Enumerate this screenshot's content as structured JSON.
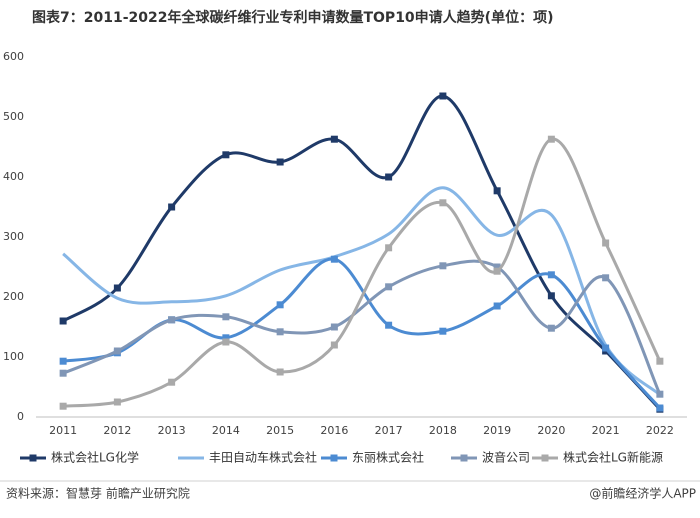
{
  "chart_data": {
    "type": "line",
    "title": "图表7：2011-2022年全球碳纤维行业专利申请数量TOP10申请人趋势(单位：项)",
    "categories": [
      "2011",
      "2012",
      "2013",
      "2014",
      "2015",
      "2016",
      "2017",
      "2018",
      "2019",
      "2020",
      "2021",
      "2022"
    ],
    "series": [
      {
        "name": "株式会社LG化学",
        "color": "#1f3a68",
        "marker": true,
        "values": [
          160,
          215,
          350,
          437,
          425,
          463,
          400,
          535,
          377,
          202,
          110,
          13
        ]
      },
      {
        "name": "丰田自动车株式会社",
        "color": "#86b6e6",
        "marker": false,
        "values": [
          272,
          198,
          192,
          202,
          245,
          267,
          305,
          382,
          303,
          337,
          120,
          37
        ]
      },
      {
        "name": "东丽株式会社",
        "color": "#4c8bd2",
        "marker": true,
        "values": [
          93,
          107,
          162,
          132,
          187,
          263,
          153,
          143,
          185,
          237,
          115,
          15
        ]
      },
      {
        "name": "波音公司",
        "color": "#8096b6",
        "marker": true,
        "values": [
          73,
          110,
          162,
          167,
          142,
          150,
          217,
          252,
          250,
          148,
          232,
          38
        ]
      },
      {
        "name": "株式会社LG新能源",
        "color": "#a9a9a9",
        "marker": true,
        "values": [
          18,
          25,
          58,
          125,
          75,
          120,
          282,
          357,
          243,
          463,
          290,
          93
        ]
      }
    ],
    "ylim": [
      0,
      600
    ],
    "yticks": [
      0,
      100,
      200,
      300,
      400,
      500,
      600
    ],
    "grid": false,
    "smooth": true,
    "legend": "bottom"
  },
  "footer": {
    "source": "资料来源：智慧芽 前瞻产业研究院",
    "brand": "@前瞻经济学人APP"
  }
}
